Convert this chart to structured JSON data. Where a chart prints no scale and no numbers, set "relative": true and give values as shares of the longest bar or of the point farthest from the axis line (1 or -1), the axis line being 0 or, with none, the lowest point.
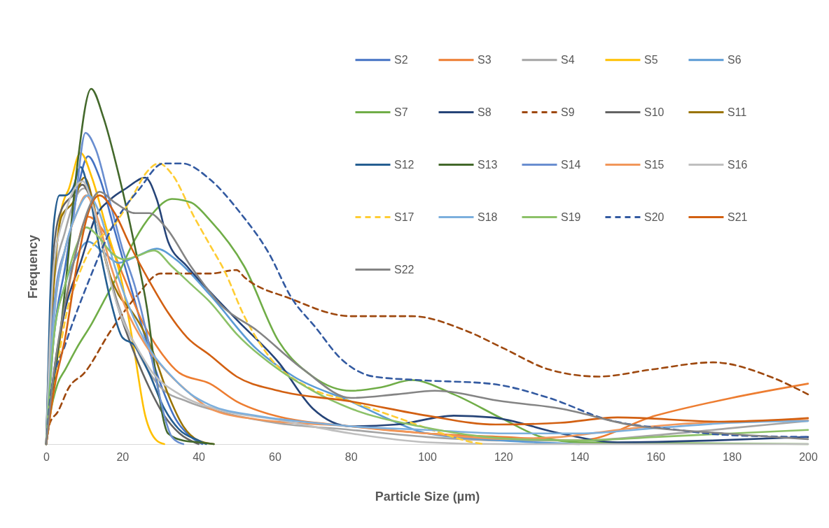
{
  "chart_data": {
    "type": "line",
    "relative": true,
    "xlabel": "Particle Size (µm)",
    "ylabel": "Frequency",
    "xlim": [
      0,
      200
    ],
    "xticks": [
      0,
      20,
      40,
      60,
      80,
      100,
      120,
      140,
      160,
      180,
      200
    ],
    "legend": "top right",
    "series": [
      {
        "name": "S2",
        "color": "#4472c4",
        "x": [
          0,
          2,
          5,
          8,
          11,
          14,
          18,
          22,
          26,
          30,
          34,
          38,
          41
        ],
        "values": [
          0,
          0.3,
          0.5,
          0.7,
          0.81,
          0.75,
          0.6,
          0.45,
          0.3,
          0.17,
          0.07,
          0.02,
          0
        ]
      },
      {
        "name": "S3",
        "color": "#ed7d31",
        "x": [
          0,
          3,
          7,
          11,
          15,
          20,
          25,
          30,
          35,
          43,
          50,
          60,
          80,
          100,
          120,
          140,
          160,
          180,
          200
        ],
        "values": [
          0,
          0.25,
          0.5,
          0.64,
          0.6,
          0.48,
          0.35,
          0.26,
          0.2,
          0.17,
          0.12,
          0.08,
          0.05,
          0.03,
          0.02,
          0.01,
          0.08,
          0.13,
          0.17
        ]
      },
      {
        "name": "S4",
        "color": "#a5a5a5",
        "x": [
          0,
          2,
          5,
          8,
          10,
          13,
          16,
          20,
          25,
          30,
          37,
          46,
          60,
          80,
          100,
          120,
          140,
          160,
          180,
          200
        ],
        "values": [
          0,
          0.45,
          0.6,
          0.7,
          0.72,
          0.65,
          0.5,
          0.36,
          0.24,
          0.16,
          0.12,
          0.09,
          0.06,
          0.04,
          0.02,
          0.01,
          0.01,
          0.025,
          0.045,
          0.065
        ]
      },
      {
        "name": "S5",
        "color": "#ffc000",
        "x": [
          0,
          2,
          4,
          6,
          9,
          12,
          16,
          20,
          23,
          26,
          29,
          31
        ],
        "values": [
          0,
          0.45,
          0.66,
          0.72,
          0.82,
          0.75,
          0.6,
          0.45,
          0.27,
          0.08,
          0.01,
          0
        ]
      },
      {
        "name": "S6",
        "color": "#5b9bd5",
        "x": [
          0,
          2,
          5,
          8,
          11,
          15,
          19,
          24,
          29,
          34,
          43,
          55,
          65,
          80,
          90,
          100,
          120,
          140
        ],
        "values": [
          0,
          0.3,
          0.45,
          0.53,
          0.57,
          0.54,
          0.51,
          0.53,
          0.55,
          0.52,
          0.42,
          0.27,
          0.19,
          0.12,
          0.07,
          0.03,
          0.01,
          0
        ]
      },
      {
        "name": "S7",
        "color": "#70ad47",
        "x": [
          0,
          1,
          3,
          5,
          8,
          12,
          15,
          19,
          23,
          28,
          33,
          38,
          43,
          52,
          61,
          70,
          80,
          88,
          96,
          107,
          120,
          130,
          140,
          200
        ],
        "values": [
          0,
          0.08,
          0.17,
          0.21,
          0.27,
          0.34,
          0.4,
          0.48,
          0.57,
          0.65,
          0.69,
          0.68,
          0.63,
          0.5,
          0.29,
          0.19,
          0.15,
          0.16,
          0.18,
          0.14,
          0.07,
          0.02,
          0.005,
          0
        ]
      },
      {
        "name": "S8",
        "color": "#264478",
        "x": [
          0,
          2,
          5,
          9,
          13,
          17,
          21,
          26,
          29,
          32,
          37,
          42,
          50,
          61,
          70,
          80,
          92,
          107,
          117,
          135,
          150,
          175,
          200
        ],
        "values": [
          0,
          0.2,
          0.38,
          0.51,
          0.64,
          0.69,
          0.72,
          0.75,
          0.69,
          0.57,
          0.5,
          0.44,
          0.35,
          0.23,
          0.1,
          0.05,
          0.055,
          0.08,
          0.075,
          0.03,
          0.005,
          0.01,
          0.02
        ]
      },
      {
        "name": "S9",
        "color": "#9e480e",
        "line_style": "dashed",
        "x": [
          0,
          1,
          3,
          6,
          10,
          17,
          24,
          30,
          43,
          50,
          52,
          64,
          80,
          96,
          110,
          120,
          132,
          145,
          159,
          175,
          190,
          200
        ],
        "values": [
          0,
          0.06,
          0.09,
          0.16,
          0.2,
          0.32,
          0.42,
          0.48,
          0.48,
          0.49,
          0.47,
          0.41,
          0.36,
          0.36,
          0.32,
          0.27,
          0.21,
          0.19,
          0.21,
          0.23,
          0.19,
          0.14
        ]
      },
      {
        "name": "S10",
        "color": "#636363",
        "x": [
          0,
          2,
          4,
          7,
          9.5,
          12,
          15,
          19,
          23,
          27,
          31,
          35,
          40
        ],
        "values": [
          0,
          0.55,
          0.66,
          0.7,
          0.73,
          0.68,
          0.55,
          0.38,
          0.26,
          0.16,
          0.08,
          0.03,
          0
        ]
      },
      {
        "name": "S11",
        "color": "#997300",
        "x": [
          0,
          2,
          4,
          7,
          10,
          13,
          16,
          19,
          22,
          25,
          28,
          32,
          36,
          40,
          44
        ],
        "values": [
          0,
          0.45,
          0.64,
          0.68,
          0.75,
          0.65,
          0.5,
          0.42,
          0.38,
          0.33,
          0.26,
          0.14,
          0.05,
          0.01,
          0
        ]
      },
      {
        "name": "S12",
        "color": "#255e91",
        "x": [
          0,
          1,
          2,
          3.5,
          5,
          7,
          9,
          11,
          14,
          17,
          20,
          23,
          27,
          31,
          35,
          40,
          42
        ],
        "values": [
          0,
          0.4,
          0.62,
          0.7,
          0.7,
          0.72,
          0.78,
          0.72,
          0.55,
          0.4,
          0.3,
          0.28,
          0.2,
          0.1,
          0.04,
          0.01,
          0
        ]
      },
      {
        "name": "S13",
        "color": "#43682b",
        "x": [
          0,
          1,
          3,
          5,
          8,
          11.8,
          15,
          19,
          23,
          26.5,
          29,
          32,
          36,
          40,
          44
        ],
        "values": [
          0,
          0.1,
          0.25,
          0.44,
          0.77,
          1,
          0.92,
          0.76,
          0.57,
          0.38,
          0.18,
          0.03,
          0.01,
          0.005,
          0
        ]
      },
      {
        "name": "S14",
        "color": "#698ed0",
        "x": [
          0,
          1,
          2.6,
          5,
          7,
          10.3,
          13,
          17,
          20,
          23.4,
          26,
          28.3,
          31,
          33,
          36
        ],
        "values": [
          0,
          0.25,
          0.44,
          0.55,
          0.63,
          0.876,
          0.83,
          0.67,
          0.55,
          0.44,
          0.33,
          0.21,
          0.08,
          0.02,
          0
        ]
      },
      {
        "name": "S15",
        "color": "#f1975a",
        "x": [
          0,
          2,
          5,
          8,
          10.5,
          13,
          17,
          21,
          26,
          32,
          38,
          43,
          55,
          80,
          100,
          120,
          135,
          150,
          165,
          178,
          200
        ],
        "values": [
          0,
          0.35,
          0.55,
          0.65,
          0.7,
          0.65,
          0.5,
          0.38,
          0.28,
          0.2,
          0.14,
          0.1,
          0.07,
          0.05,
          0.03,
          0.015,
          0.02,
          0.04,
          0.055,
          0.063,
          0.067
        ]
      },
      {
        "name": "S16",
        "color": "#bfbfbf",
        "x": [
          0,
          2,
          5,
          9.6,
          12,
          15,
          17.3,
          20,
          23.4,
          28,
          35,
          46,
          60,
          80,
          100,
          120,
          200
        ],
        "values": [
          0,
          0.5,
          0.65,
          0.74,
          0.68,
          0.55,
          0.44,
          0.35,
          0.28,
          0.2,
          0.14,
          0.095,
          0.07,
          0.03,
          0.005,
          0,
          0
        ]
      },
      {
        "name": "S17",
        "color": "#ffcd33",
        "line_style": "dashed",
        "x": [
          0,
          2,
          5.6,
          8,
          11.2,
          14,
          17.3,
          20,
          22.8,
          26,
          29.6,
          33,
          38.8,
          43,
          46.7,
          52,
          59,
          68.8,
          80,
          92,
          104,
          112,
          115
        ],
        "values": [
          0,
          0.15,
          0.38,
          0.46,
          0.54,
          0.58,
          0.61,
          0.65,
          0.7,
          0.76,
          0.79,
          0.76,
          0.64,
          0.56,
          0.49,
          0.36,
          0.24,
          0.16,
          0.12,
          0.075,
          0.03,
          0.005,
          0
        ]
      },
      {
        "name": "S18",
        "color": "#7cafdd",
        "x": [
          0,
          2,
          5,
          8,
          11,
          14,
          18,
          22,
          27,
          33,
          38,
          43,
          55,
          70,
          80,
          100,
          120,
          140,
          160,
          180,
          200
        ],
        "values": [
          0,
          0.35,
          0.55,
          0.65,
          0.7,
          0.65,
          0.5,
          0.38,
          0.27,
          0.19,
          0.14,
          0.11,
          0.08,
          0.06,
          0.05,
          0.04,
          0.03,
          0.03,
          0.045,
          0.06,
          0.065
        ]
      },
      {
        "name": "S19",
        "color": "#8cc168",
        "x": [
          0,
          2,
          5,
          8,
          10.5,
          14,
          17,
          20.4,
          24,
          28.3,
          33,
          38,
          43,
          50,
          61,
          70,
          80,
          98,
          120,
          140,
          160,
          180,
          200
        ],
        "values": [
          0,
          0.3,
          0.45,
          0.56,
          0.61,
          0.58,
          0.54,
          0.52,
          0.53,
          0.545,
          0.5,
          0.45,
          0.4,
          0.31,
          0.21,
          0.15,
          0.1,
          0.05,
          0.016,
          0.01,
          0.02,
          0.03,
          0.04
        ]
      },
      {
        "name": "S20",
        "color": "#335aa1",
        "line_style": "dashed",
        "x": [
          0,
          1.3,
          5,
          11.2,
          17.3,
          24.6,
          30.7,
          35.7,
          43,
          51,
          58.3,
          64.5,
          70.6,
          77.4,
          86,
          98,
          116.5,
          132,
          147,
          165.6,
          178,
          200
        ],
        "values": [
          0,
          0.15,
          0.28,
          0.46,
          0.61,
          0.72,
          0.79,
          0.79,
          0.745,
          0.65,
          0.54,
          0.41,
          0.33,
          0.24,
          0.19,
          0.18,
          0.17,
          0.13,
          0.07,
          0.04,
          0.026,
          0.02
        ]
      },
      {
        "name": "S21",
        "color": "#d26012",
        "x": [
          0,
          2,
          5,
          8,
          11,
          14,
          18,
          22,
          27,
          32,
          37,
          43,
          50,
          61,
          80,
          100,
          118,
          135,
          150,
          178,
          200
        ],
        "values": [
          0,
          0.15,
          0.3,
          0.5,
          0.65,
          0.7,
          0.65,
          0.56,
          0.46,
          0.37,
          0.3,
          0.25,
          0.19,
          0.15,
          0.12,
          0.08,
          0.055,
          0.06,
          0.075,
          0.063,
          0.073
        ]
      },
      {
        "name": "S22",
        "color": "#848484",
        "x": [
          0,
          2,
          5,
          8,
          11,
          14,
          18,
          23.4,
          27,
          31.4,
          38,
          46,
          55.3,
          67.5,
          80,
          92,
          102,
          120,
          135,
          153,
          178,
          200
        ],
        "values": [
          0,
          0.2,
          0.4,
          0.55,
          0.66,
          0.71,
          0.68,
          0.65,
          0.65,
          0.61,
          0.5,
          0.39,
          0.32,
          0.21,
          0.13,
          0.14,
          0.15,
          0.12,
          0.1,
          0.055,
          0.03,
          0.014
        ]
      }
    ]
  }
}
